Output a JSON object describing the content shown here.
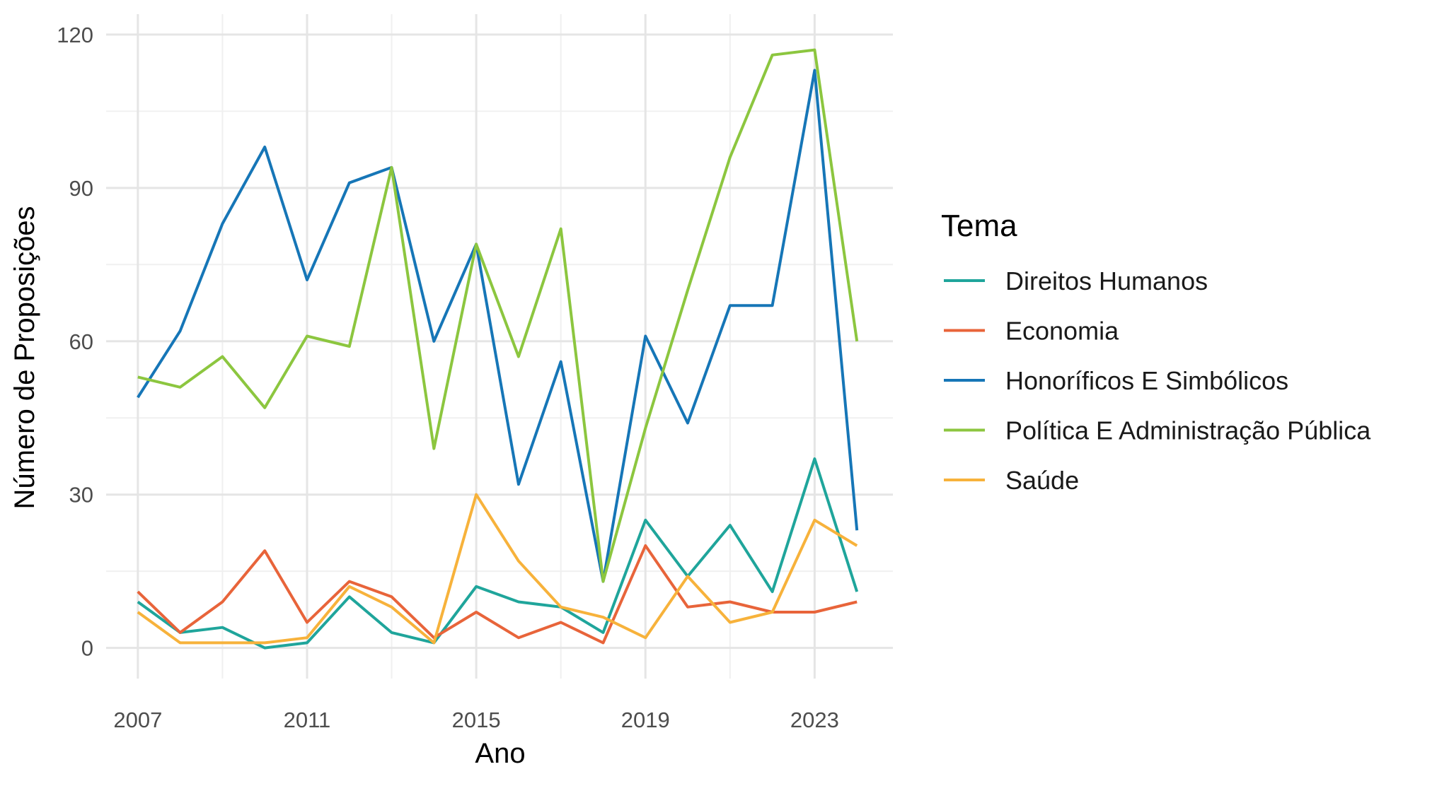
{
  "chart_data": {
    "type": "line",
    "xlabel": "Ano",
    "ylabel": "Número de Proposições",
    "x": [
      2007,
      2008,
      2009,
      2010,
      2011,
      2012,
      2013,
      2014,
      2015,
      2016,
      2017,
      2018,
      2019,
      2020,
      2021,
      2022,
      2023,
      2024
    ],
    "xticks": [
      2007,
      2011,
      2015,
      2019,
      2023
    ],
    "yticks": [
      0,
      30,
      60,
      90,
      120
    ],
    "xlim": [
      2006.25,
      2024.85
    ],
    "ylim": [
      -6,
      124
    ],
    "grid": true,
    "legend": {
      "title": "Tema",
      "position": "right"
    },
    "series": [
      {
        "name": "Direitos Humanos",
        "color": "#1fa59b",
        "values": [
          9,
          3,
          4,
          0,
          1,
          10,
          3,
          1,
          12,
          9,
          8,
          3,
          25,
          14,
          24,
          11,
          37,
          11
        ]
      },
      {
        "name": "Economia",
        "color": "#e8643a",
        "values": [
          11,
          3,
          9,
          19,
          5,
          13,
          10,
          2,
          7,
          2,
          5,
          1,
          20,
          8,
          9,
          7,
          7,
          9
        ]
      },
      {
        "name": "Honoríficos E Simbólicos",
        "color": "#1676b7",
        "values": [
          49,
          62,
          83,
          98,
          72,
          91,
          94,
          60,
          79,
          32,
          56,
          13,
          61,
          44,
          67,
          67,
          113,
          23
        ]
      },
      {
        "name": "Política E Administração Pública",
        "color": "#8cc63f",
        "values": [
          53,
          51,
          57,
          47,
          61,
          59,
          94,
          39,
          79,
          57,
          82,
          13,
          43,
          70,
          96,
          116,
          117,
          60
        ]
      },
      {
        "name": "Saúde",
        "color": "#f7b23b",
        "values": [
          7,
          1,
          1,
          1,
          2,
          12,
          8,
          1,
          30,
          17,
          8,
          6,
          2,
          14,
          5,
          7,
          25,
          20
        ]
      }
    ]
  }
}
